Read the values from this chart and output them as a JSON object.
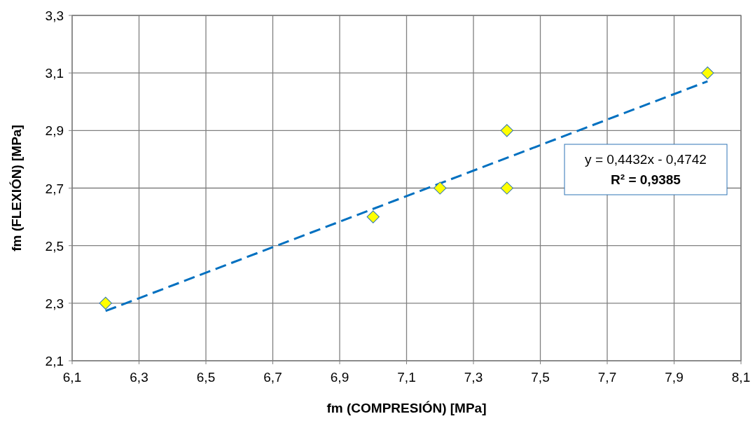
{
  "chart_data": {
    "type": "scatter",
    "xlabel": "fm (COMPRESIÓN) [MPa]",
    "ylabel": "fm (FLEXIÓN) [MPa]",
    "xlim": [
      6.1,
      8.1
    ],
    "ylim": [
      2.1,
      3.3
    ],
    "xticks": [
      {
        "value": 6.1,
        "label": "6,1"
      },
      {
        "value": 6.3,
        "label": "6,3"
      },
      {
        "value": 6.5,
        "label": "6,5"
      },
      {
        "value": 6.7,
        "label": "6,7"
      },
      {
        "value": 6.9,
        "label": "6,9"
      },
      {
        "value": 7.1,
        "label": "7,1"
      },
      {
        "value": 7.3,
        "label": "7,3"
      },
      {
        "value": 7.5,
        "label": "7,5"
      },
      {
        "value": 7.7,
        "label": "7,7"
      },
      {
        "value": 7.9,
        "label": "7,9"
      },
      {
        "value": 8.1,
        "label": "8,1"
      }
    ],
    "yticks": [
      {
        "value": 2.1,
        "label": "2,1"
      },
      {
        "value": 2.3,
        "label": "2,3"
      },
      {
        "value": 2.5,
        "label": "2,5"
      },
      {
        "value": 2.7,
        "label": "2,7"
      },
      {
        "value": 2.9,
        "label": "2,9"
      },
      {
        "value": 3.1,
        "label": "3,1"
      },
      {
        "value": 3.3,
        "label": "3,3"
      }
    ],
    "grid": true,
    "series": [
      {
        "marker": "diamond",
        "color": "#ffff00",
        "x": [
          6.2,
          7.0,
          7.2,
          7.4,
          7.4,
          8.0
        ],
        "values": [
          2.3,
          2.6,
          2.7,
          2.9,
          2.7,
          3.1
        ]
      },
      {
        "type": "line",
        "marker": "none",
        "color": "#0070c0",
        "line_style": "dashed",
        "x": [
          6.2,
          8.0
        ],
        "values": [
          2.273,
          3.071
        ]
      }
    ],
    "annotations": [
      "y = 0,4432x - 0,4742",
      "R² = 0,9385"
    ]
  }
}
